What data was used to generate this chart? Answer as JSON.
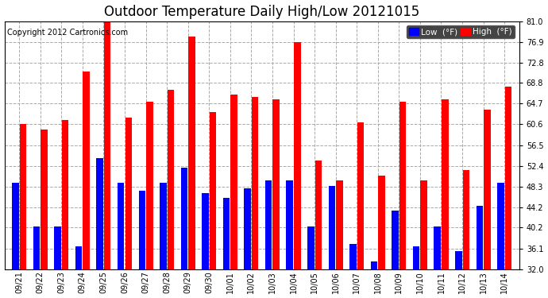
{
  "title": "Outdoor Temperature Daily High/Low 20121015",
  "copyright": "Copyright 2012 Cartronics.com",
  "legend_low": "Low  (°F)",
  "legend_high": "High  (°F)",
  "dates": [
    "09/21",
    "09/22",
    "09/23",
    "09/24",
    "09/25",
    "09/26",
    "09/27",
    "09/28",
    "09/29",
    "09/30",
    "10/01",
    "10/02",
    "10/03",
    "10/04",
    "10/05",
    "10/06",
    "10/07",
    "10/08",
    "10/09",
    "10/10",
    "10/11",
    "10/12",
    "10/13",
    "10/14"
  ],
  "highs": [
    60.6,
    59.5,
    61.5,
    71.0,
    81.0,
    62.0,
    65.0,
    67.5,
    78.0,
    63.0,
    66.5,
    66.0,
    65.5,
    76.9,
    53.5,
    49.5,
    61.0,
    50.5,
    65.0,
    49.5,
    65.5,
    51.5,
    63.5,
    68.0
  ],
  "lows": [
    49.0,
    40.5,
    40.5,
    36.5,
    54.0,
    49.0,
    47.5,
    49.0,
    52.0,
    47.0,
    46.0,
    48.0,
    49.5,
    49.5,
    40.5,
    48.5,
    37.0,
    33.5,
    43.5,
    36.5,
    40.5,
    35.5,
    44.5,
    49.0
  ],
  "ylim_min": 32.0,
  "ylim_max": 81.0,
  "yticks": [
    32.0,
    36.1,
    40.2,
    44.2,
    48.3,
    52.4,
    56.5,
    60.6,
    64.7,
    68.8,
    72.8,
    76.9,
    81.0
  ],
  "bar_color_high": "#ff0000",
  "bar_color_low": "#0000ff",
  "bg_color": "#ffffff",
  "grid_color": "#aaaaaa",
  "title_fontsize": 12,
  "copyright_fontsize": 7,
  "tick_fontsize": 7,
  "legend_fontsize": 7.5,
  "bar_width": 0.32,
  "bar_gap": 0.04
}
